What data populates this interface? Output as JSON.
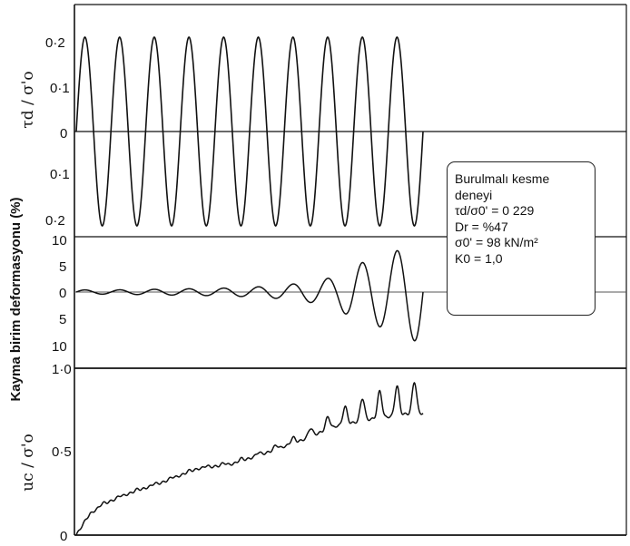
{
  "chart_data": [
    {
      "type": "line",
      "panel": "top",
      "ylabel": "τd / σ'o",
      "y_ticks": [
        "0·2",
        "0·1",
        "0",
        "0·1",
        "0·2"
      ],
      "ylim": [
        -0.229,
        0.229
      ],
      "series": [
        {
          "cycles": 10.0,
          "amplitude": 0.229,
          "values": "sinusoidal, symmetric about 0"
        }
      ]
    },
    {
      "type": "line",
      "panel": "middle",
      "ylabel": "Kayma birim deformasyonu (%)",
      "y_ticks": [
        "10",
        "5",
        "0",
        "5",
        "10"
      ],
      "ylim": [
        -10,
        10
      ],
      "series": [
        {
          "cycle": [
            0,
            1,
            2,
            3,
            4,
            5,
            6,
            7,
            7.5,
            8,
            8.5,
            9,
            9.5,
            10
          ],
          "amplitude": [
            0.4,
            0.4,
            0.5,
            0.6,
            0.7,
            0.9,
            1.3,
            2.2,
            3.0,
            5.2,
            6.0,
            7.2,
            8.5,
            10.0
          ]
        }
      ]
    },
    {
      "type": "line",
      "panel": "bottom",
      "ylabel": "uc / σ'o",
      "y_ticks": [
        "1·0",
        "0·5",
        "0"
      ],
      "ylim": [
        0,
        1.0
      ],
      "series": [
        {
          "cycle": [
            0,
            0.15,
            0.4,
            0.8,
            1.5,
            2.5,
            3.5,
            4.5,
            5.5,
            6.5,
            7.0,
            7.5,
            8.0,
            8.5,
            9.0,
            9.5,
            10.0
          ],
          "mean": [
            0,
            0.05,
            0.13,
            0.19,
            0.25,
            0.32,
            0.4,
            0.43,
            0.5,
            0.58,
            0.63,
            0.68,
            0.71,
            0.74,
            0.76,
            0.78,
            0.79
          ],
          "peak_excursion": [
            0,
            0,
            0.01,
            0.01,
            0.01,
            0.01,
            0.01,
            0.015,
            0.02,
            0.04,
            0.06,
            0.09,
            0.12,
            0.15,
            0.17,
            0.18,
            0.2
          ]
        }
      ]
    }
  ],
  "legend_box": {
    "line1": "Burulmalı kesme",
    "line2": "deneyi",
    "ratio_label": "τd/σ0' = 0 229",
    "dr_label": "Dr = %47",
    "sigma_label": "σ0' = 98 kN/m²",
    "k0_label": "K0 = 1,0"
  }
}
